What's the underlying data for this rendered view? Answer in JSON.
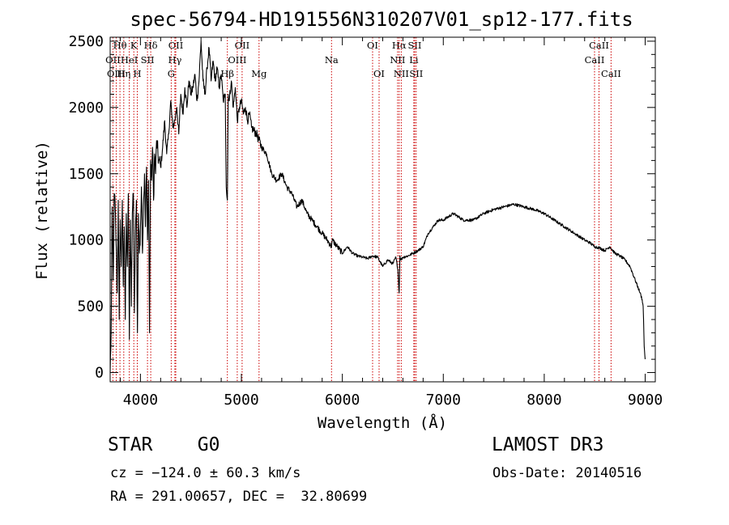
{
  "chart_data": {
    "type": "line",
    "title": "spec-56794-HD191556N310207V01_sp12-177.fits",
    "xlabel": "Wavelength (Å)",
    "ylabel": "Flux (relative)",
    "xlim": [
      3700,
      9100
    ],
    "ylim": [
      -70,
      2530
    ],
    "xticks": [
      4000,
      5000,
      6000,
      7000,
      8000,
      9000
    ],
    "yticks": [
      0,
      500,
      1000,
      1500,
      2000,
      2500
    ],
    "series": [
      {
        "name": "flux",
        "x": [
          3700,
          3710,
          3720,
          3730,
          3740,
          3750,
          3760,
          3770,
          3780,
          3790,
          3800,
          3810,
          3820,
          3830,
          3840,
          3850,
          3860,
          3870,
          3880,
          3890,
          3900,
          3910,
          3920,
          3930,
          3940,
          3950,
          3960,
          3970,
          3980,
          3990,
          4000,
          4010,
          4020,
          4030,
          4040,
          4050,
          4060,
          4070,
          4080,
          4090,
          4100,
          4110,
          4120,
          4130,
          4140,
          4150,
          4160,
          4180,
          4200,
          4220,
          4240,
          4260,
          4280,
          4300,
          4320,
          4340,
          4360,
          4380,
          4400,
          4420,
          4440,
          4460,
          4480,
          4500,
          4520,
          4540,
          4560,
          4580,
          4600,
          4620,
          4640,
          4660,
          4680,
          4700,
          4720,
          4740,
          4760,
          4780,
          4800,
          4820,
          4840,
          4850,
          4861,
          4870,
          4880,
          4900,
          4920,
          4940,
          4960,
          4980,
          5000,
          5020,
          5040,
          5060,
          5080,
          5100,
          5150,
          5200,
          5250,
          5300,
          5350,
          5400,
          5450,
          5500,
          5550,
          5600,
          5650,
          5700,
          5750,
          5800,
          5850,
          5893,
          5900,
          5950,
          6000,
          6050,
          6100,
          6150,
          6200,
          6250,
          6300,
          6350,
          6400,
          6450,
          6500,
          6530,
          6550,
          6563,
          6570,
          6580,
          6600,
          6650,
          6700,
          6750,
          6800,
          6850,
          6900,
          6950,
          7000,
          7100,
          7200,
          7300,
          7400,
          7500,
          7600,
          7700,
          7800,
          7900,
          8000,
          8100,
          8200,
          8300,
          8400,
          8450,
          8500,
          8550,
          8600,
          8650,
          8700,
          8750,
          8800,
          8850,
          8900,
          8950,
          8970,
          8980,
          8990,
          9000
        ],
        "values": [
          0,
          300,
          1250,
          700,
          1350,
          1250,
          950,
          600,
          1300,
          400,
          1150,
          800,
          1300,
          650,
          1100,
          400,
          1200,
          800,
          1350,
          250,
          1150,
          500,
          1200,
          1350,
          450,
          1050,
          1300,
          300,
          1200,
          900,
          1100,
          1400,
          900,
          1250,
          1500,
          1100,
          1550,
          1000,
          1450,
          300,
          1600,
          1450,
          1700,
          1300,
          1650,
          1500,
          1750,
          1600,
          1550,
          1700,
          1900,
          1650,
          1800,
          2050,
          1850,
          1900,
          2000,
          1800,
          2100,
          1950,
          2150,
          2000,
          2200,
          2100,
          2150,
          2250,
          2050,
          2200,
          2500,
          2200,
          2100,
          2300,
          2450,
          2200,
          2350,
          2200,
          2300,
          2150,
          2250,
          2050,
          2100,
          1400,
          1300,
          2100,
          2050,
          2200,
          2000,
          2150,
          1900,
          2000,
          2050,
          1950,
          2000,
          1900,
          1950,
          1850,
          1800,
          1700,
          1650,
          1500,
          1450,
          1500,
          1400,
          1350,
          1250,
          1300,
          1200,
          1150,
          1100,
          1050,
          1000,
          950,
          1000,
          950,
          900,
          950,
          900,
          880,
          870,
          860,
          880,
          870,
          800,
          850,
          820,
          870,
          780,
          600,
          880,
          850,
          870,
          880,
          900,
          920,
          950,
          1050,
          1100,
          1150,
          1150,
          1200,
          1150,
          1150,
          1200,
          1230,
          1250,
          1270,
          1250,
          1230,
          1200,
          1150,
          1100,
          1050,
          1000,
          980,
          950,
          940,
          920,
          950,
          900,
          880,
          850,
          800,
          700,
          600,
          550,
          500,
          200,
          100
        ]
      }
    ],
    "line_markers": [
      {
        "label": "Hθ",
        "x": 3797,
        "row": 0
      },
      {
        "label": "K",
        "x": 3934,
        "row": 0
      },
      {
        "label": "Hδ",
        "x": 4102,
        "row": 0
      },
      {
        "label": "OII",
        "x": 4350,
        "row": 0
      },
      {
        "label": "OII",
        "x": 5007,
        "row": 0
      },
      {
        "label": "OI",
        "x": 6300,
        "row": 0
      },
      {
        "label": "Hα",
        "x": 6563,
        "row": 0
      },
      {
        "label": "SII",
        "x": 6717,
        "row": 0
      },
      {
        "label": "CaII",
        "x": 8542,
        "row": 0
      },
      {
        "label": "OII",
        "x": 3727,
        "row": 1
      },
      {
        "label": "HeI",
        "x": 3889,
        "row": 1
      },
      {
        "label": "SII",
        "x": 4070,
        "row": 1
      },
      {
        "label": "Hγ",
        "x": 4341,
        "row": 1
      },
      {
        "label": "OIII",
        "x": 4959,
        "row": 1
      },
      {
        "label": "Na",
        "x": 5893,
        "row": 1
      },
      {
        "label": "NII",
        "x": 6548,
        "row": 1
      },
      {
        "label": "Li",
        "x": 6708,
        "row": 1
      },
      {
        "label": "CaII",
        "x": 8498,
        "row": 1
      },
      {
        "label": "OIII",
        "x": 3760,
        "row": 2
      },
      {
        "label": "Hη",
        "x": 3835,
        "row": 2
      },
      {
        "label": "H",
        "x": 3969,
        "row": 2
      },
      {
        "label": "G",
        "x": 4305,
        "row": 2
      },
      {
        "label": "Hβ",
        "x": 4861,
        "row": 2
      },
      {
        "label": "Mg",
        "x": 5175,
        "row": 2
      },
      {
        "label": "OI",
        "x": 6364,
        "row": 2
      },
      {
        "label": "NII",
        "x": 6584,
        "row": 2
      },
      {
        "label": "SII",
        "x": 6731,
        "row": 2
      },
      {
        "label": "CaII",
        "x": 8662,
        "row": 2
      }
    ]
  },
  "info": {
    "class_line": "STAR    G0",
    "survey": "LAMOST DR3",
    "cz_line": "cz = −124.0 ± 60.3 km/s",
    "obs_date_line": "Obs-Date: 20140516",
    "radec_line": "RA = 291.00657, DEC =  32.80699"
  },
  "colors": {
    "axis": "#000000",
    "spectrum": "#000000",
    "marker_line": "#cc0000"
  }
}
